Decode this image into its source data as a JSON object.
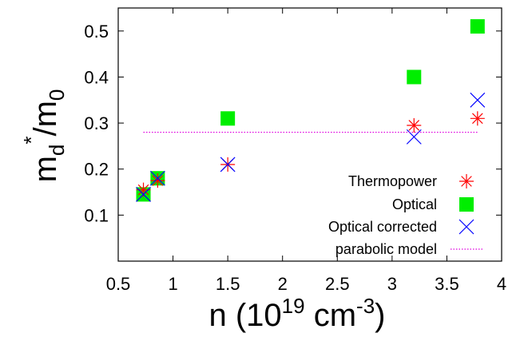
{
  "chart_data": {
    "type": "scatter",
    "title": "",
    "xlabel": {
      "pre": "n (10",
      "sup1": "19",
      "mid": " cm",
      "sup2": "-3",
      "post": ")"
    },
    "ylabel": {
      "m": "m",
      "sub_d": "d",
      "sup_star": "*",
      "slash_m": "/m",
      "sub_0": "0"
    },
    "xlim": [
      0.5,
      4
    ],
    "ylim": [
      0,
      0.55
    ],
    "x_ticks": [
      0.5,
      1,
      1.5,
      2,
      2.5,
      3,
      3.5,
      4
    ],
    "x_tick_labels": [
      "0.5",
      "1",
      "1.5",
      "2",
      "2.5",
      "3",
      "3.5",
      "4"
    ],
    "y_ticks": [
      0.1,
      0.2,
      0.3,
      0.4,
      0.5
    ],
    "y_tick_labels": [
      "0.1",
      "0.2",
      "0.3",
      "0.4",
      "0.5"
    ],
    "grid": false,
    "legend_position": "bottom-right",
    "series": [
      {
        "name": "Thermopower",
        "marker": "asterisk",
        "color": "#ff0000",
        "x": [
          0.73,
          0.86,
          1.5,
          3.2,
          3.78
        ],
        "y": [
          0.155,
          0.175,
          0.21,
          0.295,
          0.31
        ]
      },
      {
        "name": "Optical",
        "marker": "filled-square",
        "color": "#00ee00",
        "x": [
          0.73,
          0.86,
          1.5,
          3.2,
          3.78
        ],
        "y": [
          0.145,
          0.18,
          0.31,
          0.4,
          0.51
        ]
      },
      {
        "name": "Optical corrected",
        "marker": "x",
        "color": "#0000ff",
        "x": [
          0.73,
          0.86,
          1.5,
          3.2,
          3.78
        ],
        "y": [
          0.145,
          0.18,
          0.21,
          0.27,
          0.35
        ]
      },
      {
        "name": "parabolic model",
        "marker": "dotted-line",
        "color": "#e000e0",
        "x": [
          0.73,
          3.78
        ],
        "y": [
          0.28,
          0.28
        ]
      }
    ]
  }
}
